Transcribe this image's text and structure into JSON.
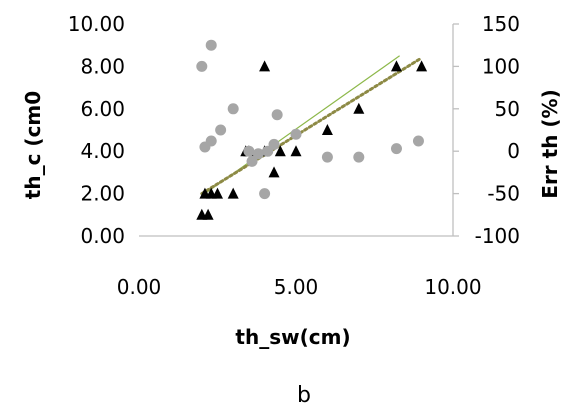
{
  "chart_data": {
    "type": "scatter",
    "title": "",
    "caption": "b",
    "xlabel": "th_sw(cm)",
    "ylabel_left": "th_c (cm0",
    "ylabel_right": "Err th (%)",
    "xlim": [
      0,
      10
    ],
    "ylim_left": [
      0,
      10
    ],
    "ylim_right": [
      -100,
      150
    ],
    "x_ticks": [
      "0.00",
      "5.00",
      "10.00"
    ],
    "y_left_ticks": [
      "0.00",
      "2.00",
      "4.00",
      "6.00",
      "8.00",
      "10.00"
    ],
    "y_right_ticks": [
      "-100",
      "-50",
      "0",
      "50",
      "100",
      "150"
    ],
    "grid": false,
    "legend": "none",
    "series": [
      {
        "axis": "left",
        "marker": "triangle",
        "color": "#000000",
        "points": [
          {
            "x": 2.0,
            "y": 1.0
          },
          {
            "x": 2.2,
            "y": 1.0
          },
          {
            "x": 2.1,
            "y": 2.0
          },
          {
            "x": 2.3,
            "y": 2.0
          },
          {
            "x": 2.5,
            "y": 2.0
          },
          {
            "x": 3.0,
            "y": 2.0
          },
          {
            "x": 3.4,
            "y": 4.0
          },
          {
            "x": 3.5,
            "y": 4.0
          },
          {
            "x": 4.0,
            "y": 8.0
          },
          {
            "x": 4.0,
            "y": 4.0
          },
          {
            "x": 4.3,
            "y": 3.0
          },
          {
            "x": 4.5,
            "y": 4.0
          },
          {
            "x": 5.0,
            "y": 4.0
          },
          {
            "x": 6.0,
            "y": 5.0
          },
          {
            "x": 7.0,
            "y": 6.0
          },
          {
            "x": 8.2,
            "y": 8.0
          },
          {
            "x": 9.0,
            "y": 8.0
          }
        ]
      },
      {
        "axis": "right",
        "marker": "circle",
        "color": "#a6a6a6",
        "points": [
          {
            "x": 2.0,
            "y": 100
          },
          {
            "x": 2.3,
            "y": 125
          },
          {
            "x": 2.1,
            "y": 5
          },
          {
            "x": 2.3,
            "y": 12
          },
          {
            "x": 2.6,
            "y": 25
          },
          {
            "x": 3.0,
            "y": 50
          },
          {
            "x": 3.5,
            "y": 0
          },
          {
            "x": 3.6,
            "y": -12
          },
          {
            "x": 3.8,
            "y": -3
          },
          {
            "x": 4.0,
            "y": -50
          },
          {
            "x": 4.1,
            "y": 0
          },
          {
            "x": 4.3,
            "y": 8
          },
          {
            "x": 4.4,
            "y": 43
          },
          {
            "x": 5.0,
            "y": 20
          },
          {
            "x": 6.0,
            "y": -7
          },
          {
            "x": 7.0,
            "y": -7
          },
          {
            "x": 8.2,
            "y": 3
          },
          {
            "x": 8.9,
            "y": 12
          }
        ]
      }
    ],
    "trendlines": [
      {
        "axis": "left",
        "style": "solid",
        "color": "#8db84a",
        "from": {
          "x": 2.0,
          "y": 1.9
        },
        "to": {
          "x": 8.3,
          "y": 8.5
        }
      },
      {
        "axis": "left",
        "style": "dotted",
        "color": "#8d8a45",
        "from": {
          "x": 2.0,
          "y": 2.0
        },
        "to": {
          "x": 9.0,
          "y": 8.4
        }
      }
    ]
  }
}
